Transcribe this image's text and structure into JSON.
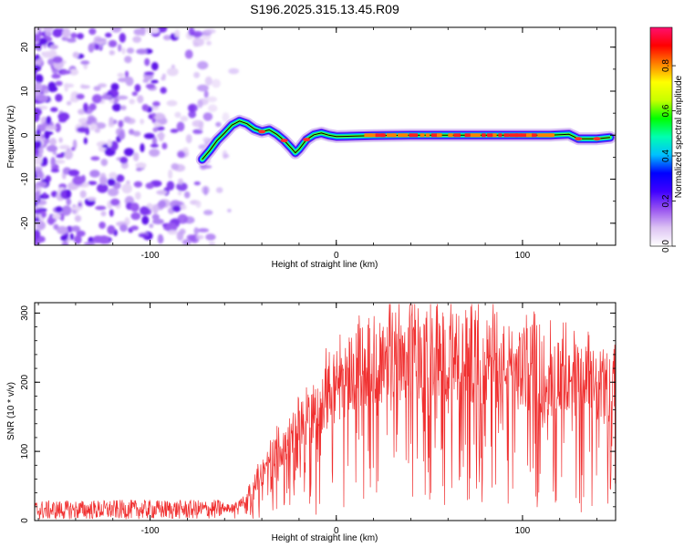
{
  "title": "S196.2025.315.13.45.R09",
  "chart_data": [
    {
      "type": "heatmap",
      "title": "S196.2025.315.13.45.R09",
      "xlabel": "Height of straight line (km)",
      "ylabel": "Frequency (Hz)",
      "xlim": [
        -162,
        150
      ],
      "ylim": [
        -25,
        24.5
      ],
      "xticks": [
        -100,
        0,
        100
      ],
      "yticks": [
        -20,
        -10,
        0,
        10,
        20
      ],
      "noise_region_x": [
        -162,
        -55
      ],
      "ridge": {
        "x": [
          -72,
          -68,
          -64,
          -60,
          -56,
          -52,
          -48,
          -44,
          -40,
          -36,
          -32,
          -28,
          -24,
          -22,
          -20,
          -16,
          -12,
          -8,
          -4,
          0,
          10,
          20,
          40,
          60,
          80,
          100,
          115,
          125,
          130,
          140,
          147
        ],
        "y": [
          -5.5,
          -3.5,
          -1.2,
          0.5,
          2.3,
          3.2,
          2.6,
          1.4,
          0.8,
          1.2,
          0.2,
          -1.2,
          -3.0,
          -4.0,
          -3.2,
          -1.0,
          0.1,
          0.5,
          0.0,
          -0.3,
          -0.2,
          -0.1,
          0.0,
          0.0,
          0.0,
          0.0,
          0.0,
          0.2,
          -0.8,
          -0.8,
          -0.5
        ]
      },
      "colorbar": {
        "label": "Normalized spectral amplitude",
        "range": [
          0.0,
          0.97
        ],
        "ticks": [
          0.0,
          0.2,
          0.4,
          0.6,
          0.8
        ],
        "tick_labels": [
          "0.0",
          "0.2",
          "0.4",
          "0.6",
          "0.8"
        ],
        "colors": [
          "#ffffff",
          "#ddc4f3",
          "#9a55f0",
          "#3f00ff",
          "#0000ff",
          "#00c0ff",
          "#00ffb0",
          "#00ff00",
          "#c8ff00",
          "#ffff00",
          "#ff8000",
          "#ff0000",
          "#ff1070"
        ]
      }
    },
    {
      "type": "line",
      "xlabel": "Height of straight line (km)",
      "ylabel": "SNR (10 * v/v)",
      "xlim": [
        -162,
        150
      ],
      "ylim": [
        0,
        315
      ],
      "xticks": [
        -100,
        0,
        100
      ],
      "yticks": [
        0,
        100,
        200,
        300
      ],
      "series": [
        {
          "name": "SNR",
          "color": "#f03030",
          "envelope_x": [
            -162,
            -110,
            -70,
            -60,
            -55,
            -50,
            -45,
            -40,
            -35,
            -30,
            -25,
            -20,
            -15,
            -10,
            -5,
            0,
            5,
            10,
            15,
            20,
            30,
            40,
            50,
            60,
            70,
            80,
            90,
            100,
            110,
            120,
            130,
            140,
            150
          ],
          "envelope_y": [
            15,
            16,
            16,
            17,
            20,
            30,
            50,
            70,
            90,
            110,
            125,
            135,
            150,
            170,
            185,
            200,
            215,
            225,
            232,
            238,
            245,
            248,
            246,
            242,
            238,
            234,
            230,
            225,
            220,
            212,
            205,
            198,
            192
          ]
        }
      ]
    }
  ]
}
